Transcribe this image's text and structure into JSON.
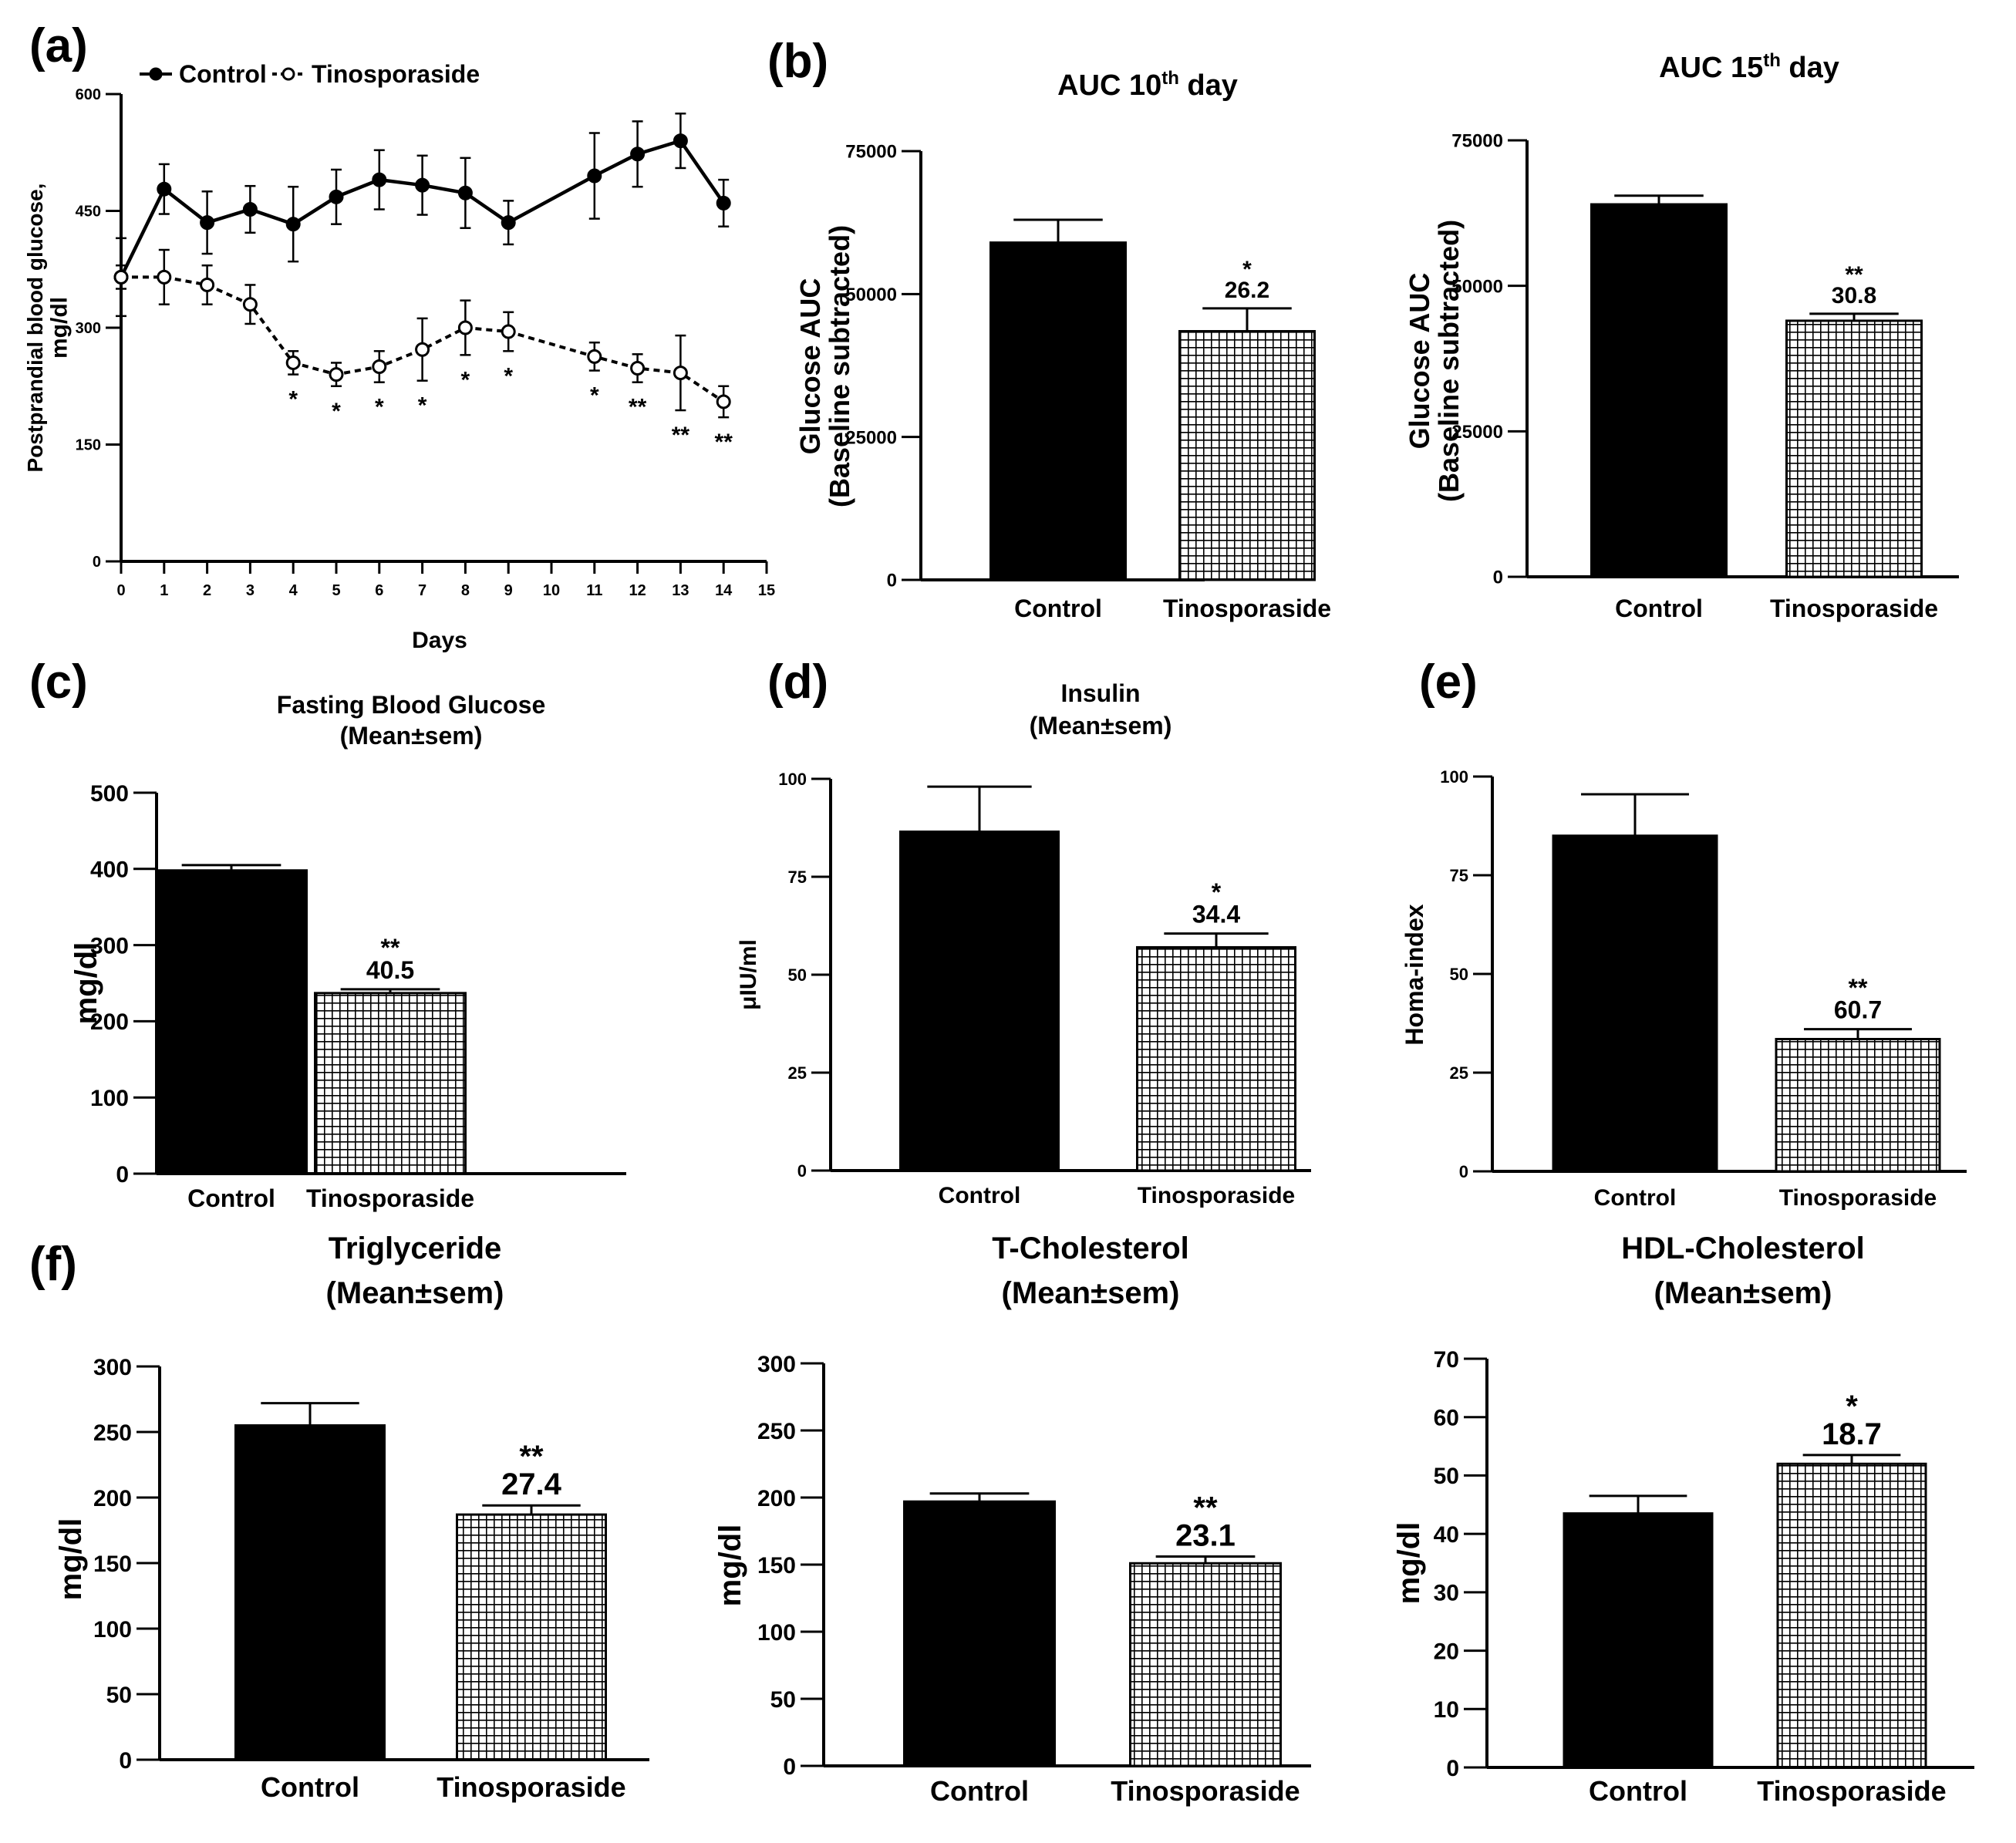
{
  "figure": {
    "background": "#ffffff",
    "bar_colors": {
      "Control": "#000000",
      "Tinosporaside": "hatch"
    }
  },
  "chart_data": [
    {
      "id": "a",
      "panel_label": "(a)",
      "type": "line",
      "title": "",
      "xlabel": "Days",
      "ylabel_lines": [
        "Postprandial blood glucose,",
        "mg/dl"
      ],
      "x": [
        0,
        1,
        2,
        3,
        4,
        5,
        6,
        7,
        8,
        9,
        11,
        12,
        13,
        14
      ],
      "xticks": [
        0,
        1,
        2,
        3,
        4,
        5,
        6,
        7,
        8,
        9,
        10,
        11,
        12,
        13,
        14,
        15
      ],
      "xlim": [
        0,
        15
      ],
      "ylim": [
        0,
        600
      ],
      "yticks": [
        0,
        150,
        300,
        450,
        600
      ],
      "legend": [
        "Control",
        "Tinosporaside"
      ],
      "legend_position": "top",
      "series": [
        {
          "name": "Control",
          "marker": "filled",
          "values": [
            365,
            478,
            435,
            452,
            433,
            468,
            490,
            483,
            473,
            435,
            495,
            523,
            540,
            460
          ],
          "errors": [
            50,
            32,
            40,
            30,
            48,
            35,
            38,
            38,
            45,
            28,
            55,
            42,
            35,
            30
          ],
          "sig": [
            "",
            "",
            "",
            "",
            "",
            "",
            "",
            "",
            "",
            "",
            "",
            "",
            "",
            ""
          ]
        },
        {
          "name": "Tinosporaside",
          "marker": "open",
          "values": [
            365,
            365,
            355,
            330,
            255,
            240,
            250,
            272,
            300,
            295,
            263,
            248,
            242,
            205
          ],
          "errors": [
            15,
            35,
            25,
            25,
            15,
            15,
            20,
            40,
            35,
            25,
            18,
            18,
            48,
            20
          ],
          "sig": [
            "",
            "",
            "",
            "",
            "*",
            "*",
            "*",
            "*",
            "*",
            "*",
            "*",
            "**",
            "**",
            "**"
          ]
        }
      ]
    },
    {
      "id": "b1",
      "panel_label": "(b)",
      "type": "bar",
      "title_main": "AUC 10",
      "title_sup": "th",
      "title_tail": " day",
      "ylabel_lines": [
        "Glucose AUC",
        "(Baseline subtracted)"
      ],
      "categories": [
        "Control",
        "Tinosporaside"
      ],
      "values": [
        59000,
        43500
      ],
      "errors": [
        4000,
        4000
      ],
      "ylim": [
        0,
        75000
      ],
      "yticks": [
        0,
        25000,
        50000,
        75000
      ],
      "annotation": {
        "sig": "*",
        "pct": "26.2"
      }
    },
    {
      "id": "b2",
      "panel_label": "",
      "type": "bar",
      "title_main": "AUC 15",
      "title_sup": "th",
      "title_tail": " day",
      "ylabel_lines": [
        "Glucose AUC",
        "(Baseline subtracted)"
      ],
      "categories": [
        "Control",
        "Tinosporaside"
      ],
      "values": [
        64000,
        44000
      ],
      "errors": [
        1500,
        1200
      ],
      "ylim": [
        0,
        75000
      ],
      "yticks": [
        0,
        25000,
        50000,
        75000
      ],
      "annotation": {
        "sig": "**",
        "pct": "30.8"
      }
    },
    {
      "id": "c",
      "panel_label": "(c)",
      "type": "bar",
      "title_lines": [
        "Fasting Blood Glucose",
        "(Mean±sem)"
      ],
      "ylabel_lines": [
        "mg/dl"
      ],
      "categories": [
        "Control",
        "Tinosporaside"
      ],
      "values": [
        398,
        237
      ],
      "errors": [
        7,
        5
      ],
      "ylim": [
        0,
        500
      ],
      "yticks": [
        0,
        100,
        200,
        300,
        400,
        500
      ],
      "annotation": {
        "sig": "**",
        "pct": "40.5"
      }
    },
    {
      "id": "d",
      "panel_label": "(d)",
      "type": "bar",
      "title_lines": [
        "Insulin",
        "(Mean±sem)"
      ],
      "ylabel_lines": [
        "μIU/ml"
      ],
      "categories": [
        "Control",
        "Tinosporaside"
      ],
      "values": [
        86.5,
        57
      ],
      "errors": [
        11.5,
        3.5
      ],
      "ylim": [
        0,
        100
      ],
      "yticks": [
        0,
        25,
        50,
        75,
        100
      ],
      "annotation": {
        "sig": "*",
        "pct": "34.4"
      }
    },
    {
      "id": "e",
      "panel_label": "(e)",
      "type": "bar",
      "title_lines": [],
      "ylabel_lines": [
        "Homa-index"
      ],
      "categories": [
        "Control",
        "Tinosporaside"
      ],
      "values": [
        85,
        33.5
      ],
      "errors": [
        10.5,
        2.5
      ],
      "ylim": [
        0,
        100
      ],
      "yticks": [
        0,
        25,
        50,
        75,
        100
      ],
      "annotation": {
        "sig": "**",
        "pct": "60.7"
      }
    },
    {
      "id": "f1",
      "panel_label": "(f)",
      "type": "bar",
      "title_lines": [
        "Triglyceride",
        "(Mean±sem)"
      ],
      "ylabel_lines": [
        "mg/dl"
      ],
      "categories": [
        "Control",
        "Tinosporaside"
      ],
      "values": [
        255,
        187
      ],
      "errors": [
        17,
        7
      ],
      "ylim": [
        0,
        300
      ],
      "yticks": [
        0,
        50,
        100,
        150,
        200,
        250,
        300
      ],
      "annotation": {
        "sig": "**",
        "pct": "27.4"
      }
    },
    {
      "id": "f2",
      "panel_label": "",
      "type": "bar",
      "title_lines": [
        "T-Cholesterol",
        "(Mean±sem)"
      ],
      "ylabel_lines": [
        "mg/dl"
      ],
      "categories": [
        "Control",
        "Tinosporaside"
      ],
      "values": [
        197,
        151
      ],
      "errors": [
        6,
        5
      ],
      "ylim": [
        0,
        300
      ],
      "yticks": [
        0,
        50,
        100,
        150,
        200,
        250,
        300
      ],
      "annotation": {
        "sig": "**",
        "pct": "23.1"
      }
    },
    {
      "id": "f3",
      "panel_label": "",
      "type": "bar",
      "title_lines": [
        "HDL-Cholesterol",
        "(Mean±sem)"
      ],
      "ylabel_lines": [
        "mg/dl"
      ],
      "categories": [
        "Control",
        "Tinosporaside"
      ],
      "values": [
        43.5,
        52
      ],
      "errors": [
        3,
        1.5
      ],
      "ylim": [
        0,
        70
      ],
      "yticks": [
        0,
        10,
        20,
        30,
        40,
        50,
        60,
        70
      ],
      "annotation": {
        "sig": "*",
        "pct": "18.7"
      }
    }
  ]
}
